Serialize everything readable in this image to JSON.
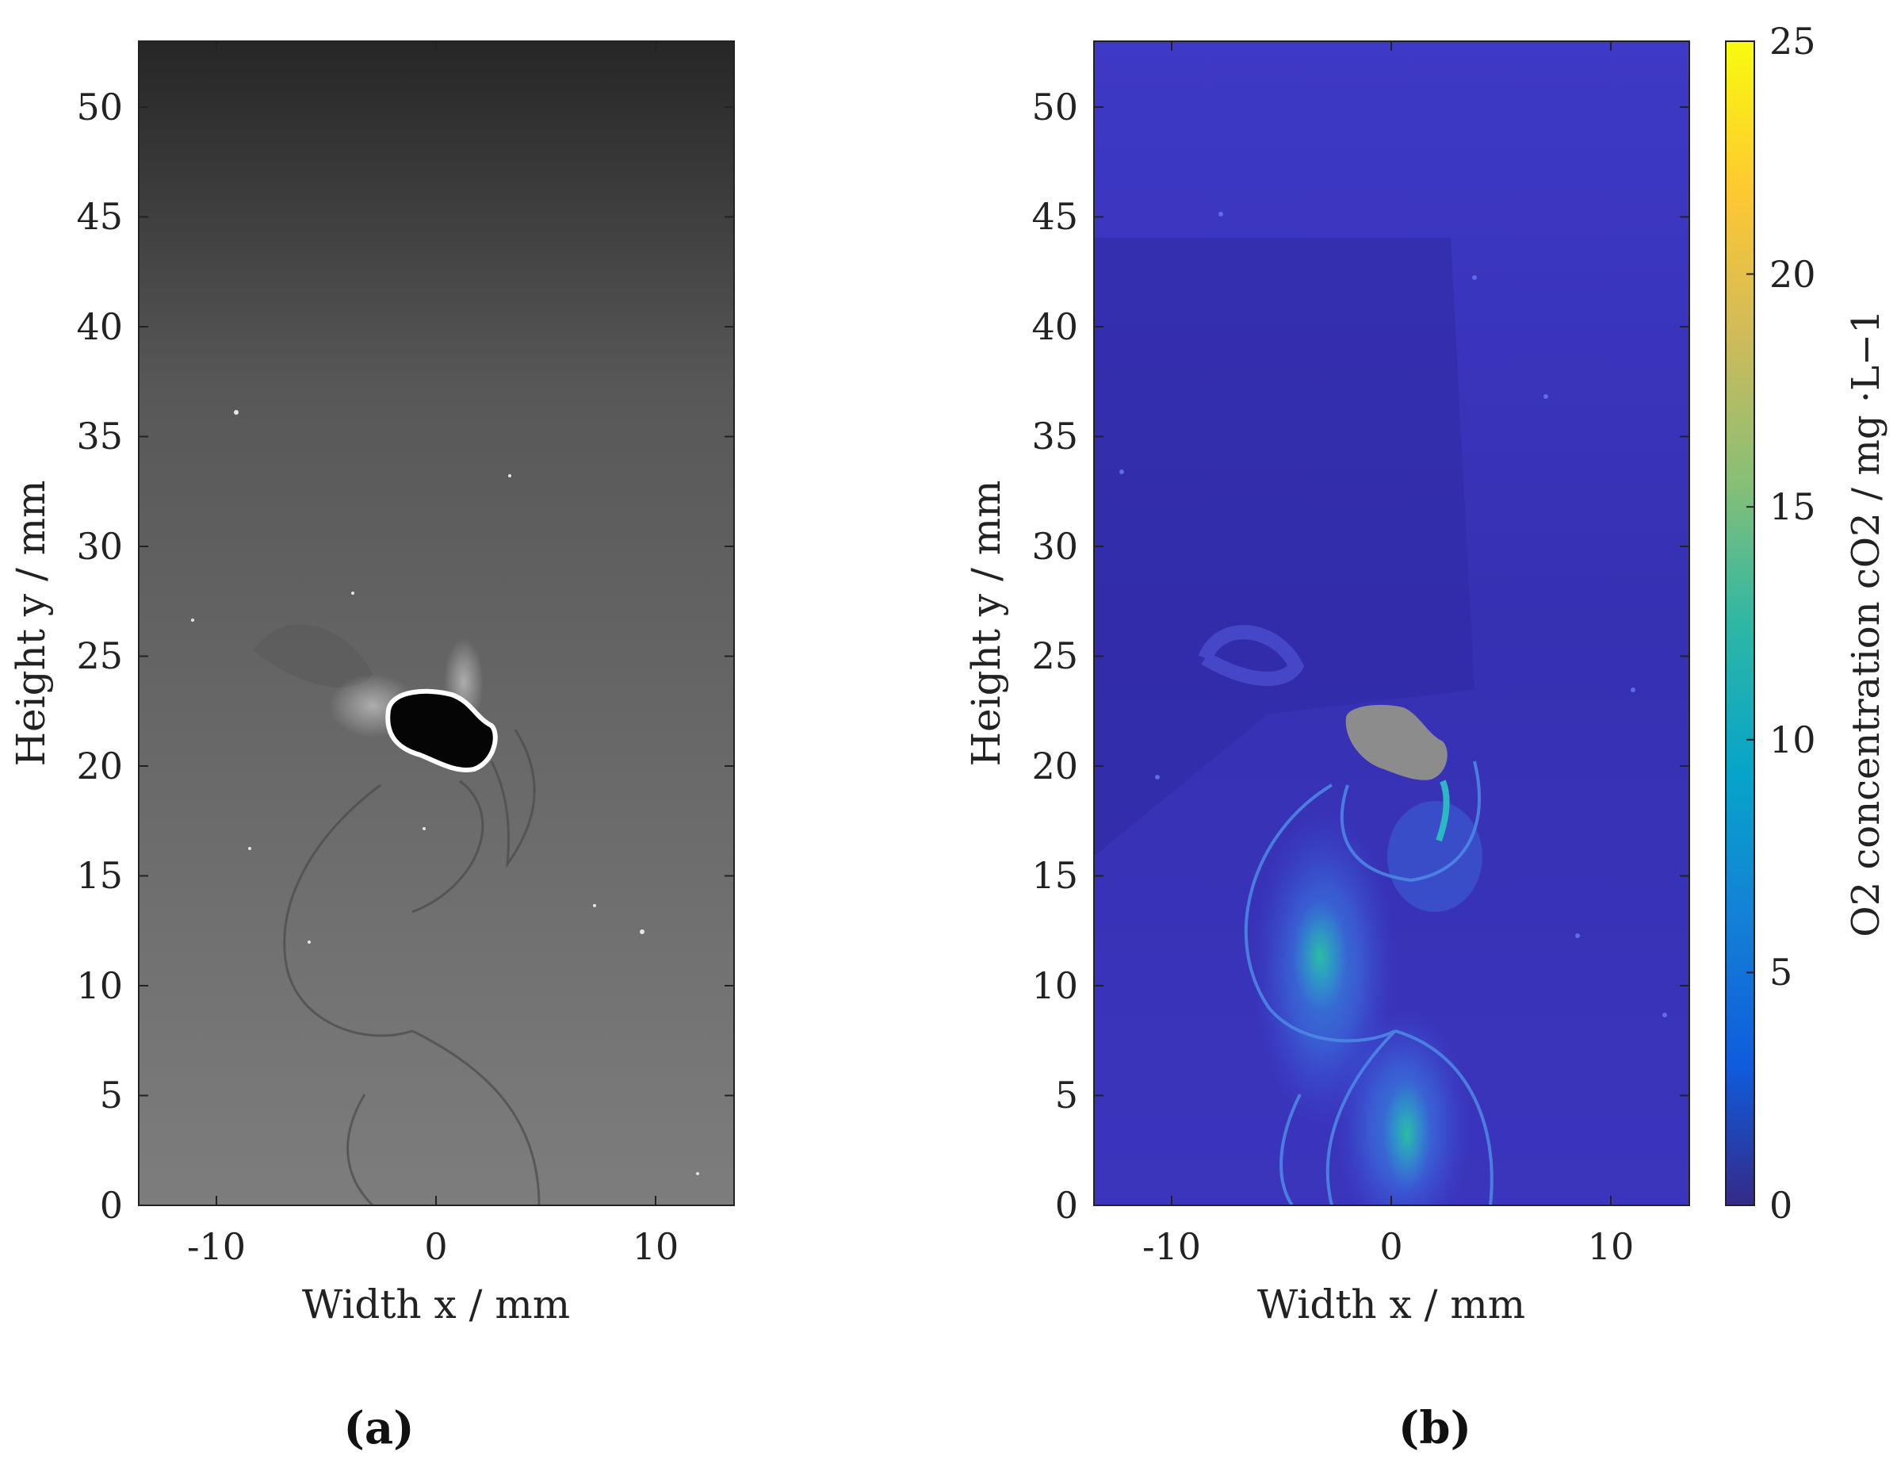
{
  "chart_data": [
    {
      "type": "heatmap",
      "panel_label": "(a)",
      "image_kind": "grayscale fluorescence image",
      "xlabel": "Width x / mm",
      "ylabel": "Height y / mm",
      "xlim": [
        -13.5,
        13.5
      ],
      "ylim": [
        0,
        53
      ],
      "xticks": [
        -10,
        0,
        10
      ],
      "yticks": [
        0,
        5,
        10,
        15,
        20,
        25,
        30,
        35,
        40,
        45,
        50
      ],
      "grid": false,
      "annotation": "bubble outlined in white at about x=0, y=22 mm"
    },
    {
      "type": "heatmap",
      "panel_label": "(b)",
      "image_kind": "O2 concentration field",
      "xlabel": "Width x / mm",
      "ylabel": "Height y / mm",
      "xlim": [
        -13.5,
        13.5
      ],
      "ylim": [
        0,
        53
      ],
      "xticks": [
        -10,
        0,
        10
      ],
      "yticks": [
        0,
        5,
        10,
        15,
        20,
        25,
        30,
        35,
        40,
        45,
        50
      ],
      "grid": false,
      "colorbar": {
        "label": "O2 concentration cO2 / mg ·L−1",
        "range": [
          0,
          25
        ],
        "ticks": [
          0,
          5,
          10,
          15,
          20,
          25
        ],
        "colormap": "parula"
      },
      "annotation": "bubble masked in gray at about x=1, y=21 mm"
    }
  ],
  "colors": {
    "panel_a_background": "#6f6f6f",
    "panel_b_background": "#3a34b8",
    "bubble_outline": "#ffffff",
    "bubble_mask": "#8c8c8c"
  }
}
